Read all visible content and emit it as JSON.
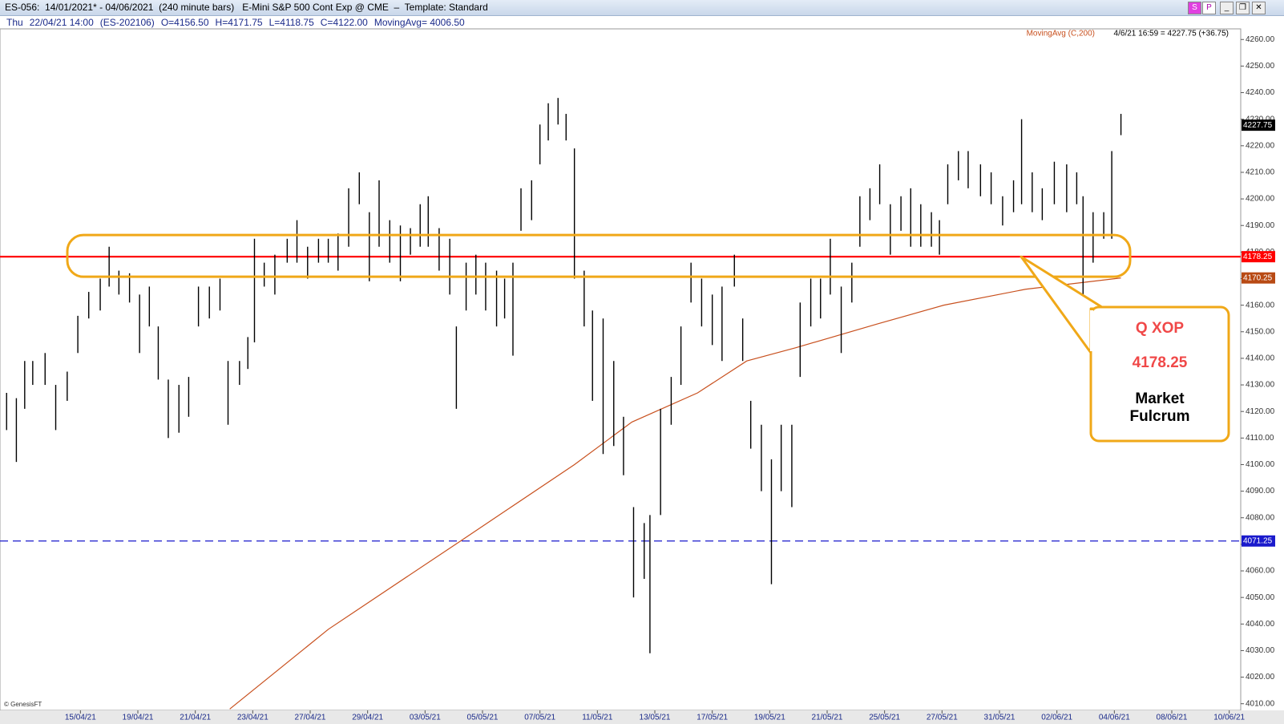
{
  "window": {
    "title": "ES-056:  14/01/2021* - 04/06/2021  (240 minute bars)   E-Mini S&P 500 Cont Exp @ CME  –  Template: Standard",
    "buttons": [
      "S",
      "P"
    ]
  },
  "header": {
    "info": [
      "Thu",
      "22/04/21 14:00",
      "(ES-202106)",
      "O=4156.50",
      "H=4171.75",
      "L=4118.75",
      "C=4122.00",
      "MovingAvg= 4006.50"
    ],
    "last_info": "4/6/21 16:59 = 4227.75 (+36.75)"
  },
  "chart_data": {
    "type": "ohlc",
    "x": [
      -2.57,
      -2.23,
      -1.94,
      -1.66,
      -1.23,
      -0.86,
      -0.46,
      -0.09,
      0.29,
      0.69,
      1.0,
      1.34,
      1.71,
      2.06,
      2.4,
      2.71,
      3.06,
      3.43,
      3.77,
      4.11,
      4.49,
      4.86,
      5.14,
      5.54,
      5.83,
      6.06,
      6.4,
      6.77,
      7.2,
      7.54,
      7.91,
      8.29,
      8.63,
      8.97,
      9.34,
      9.71,
      10.06,
      10.4,
      10.77,
      11.14,
      11.49,
      11.83,
      12.11,
      12.49,
      12.86,
      13.09,
      13.43,
      13.77,
      14.11,
      14.49,
      14.77,
      15.06,
      15.34,
      15.71,
      16.0,
      16.29,
      16.63,
      16.91,
      17.2,
      17.54,
      17.83,
      18.2,
      18.57,
      18.91,
      19.26,
      19.63,
      19.83,
      20.2,
      20.57,
      20.91,
      21.26,
      21.63,
      22.0,
      22.34,
      22.77,
      23.06,
      23.34,
      23.71,
      24.06,
      24.4,
      24.77,
      25.06,
      25.43,
      25.77,
      26.11,
      26.49,
      26.86,
      27.14,
      27.49,
      27.83,
      28.2,
      28.57,
      28.91,
      29.26,
      29.63,
      29.91,
      30.2,
      30.57,
      30.91,
      31.34,
      31.71,
      32.11,
      32.49,
      32.77,
      33.14,
      33.49,
      33.91,
      34.34,
      34.69,
      34.91,
      35.26,
      35.63,
      35.91,
      36.23
    ],
    "high": [
      4127,
      4125,
      4139,
      4139,
      4142,
      4130,
      4135,
      4156,
      4165,
      4170,
      4182,
      4173,
      4172,
      4164,
      4167,
      4152,
      4132,
      4130,
      4133,
      4167,
      4167,
      4170,
      4139,
      4139,
      4148,
      4185,
      4176,
      4179,
      4185,
      4192,
      4182,
      4185,
      4185,
      4187,
      4204,
      4210,
      4195,
      4207,
      4192,
      4190,
      4189,
      4198,
      4201,
      4189,
      4185,
      4152,
      4176,
      4179,
      4176,
      4173,
      4170,
      4176,
      4204,
      4207,
      4228,
      4236,
      4238,
      4232,
      4219,
      4173,
      4158,
      4155,
      4139,
      4118,
      4084,
      4078,
      4081,
      4121,
      4133,
      4152,
      4176,
      4170,
      4164,
      4167,
      4179,
      4155,
      4124,
      4115,
      4102,
      4115,
      4115,
      4161,
      4170,
      4170,
      4185,
      4167,
      4176,
      4201,
      4204,
      4213,
      4198,
      4201,
      4204,
      4198,
      4195,
      4192,
      4213,
      4218,
      4218,
      4213,
      4210,
      4201,
      4207,
      4230,
      4210,
      4204,
      4214,
      4213,
      4210,
      4201,
      4195,
      4195,
      4218,
      4232
    ],
    "low": [
      4113,
      4101,
      4121,
      4130,
      4130,
      4113,
      4124,
      4142,
      4155,
      4158,
      4167,
      4164,
      4161,
      4142,
      4152,
      4132,
      4110,
      4112,
      4118,
      4152,
      4155,
      4158,
      4115,
      4130,
      4136,
      4146,
      4167,
      4164,
      4176,
      4176,
      4170,
      4176,
      4176,
      4173,
      4182,
      4198,
      4169,
      4182,
      4176,
      4169,
      4179,
      4182,
      4182,
      4173,
      4164,
      4121,
      4158,
      4164,
      4158,
      4152,
      4155,
      4141,
      4188,
      4192,
      4213,
      4222,
      4228,
      4222,
      4170,
      4152,
      4124,
      4104,
      4107,
      4096,
      4050,
      4057,
      4029,
      4081,
      4115,
      4130,
      4161,
      4152,
      4145,
      4139,
      4167,
      4139,
      4106,
      4090,
      4055,
      4090,
      4084,
      4133,
      4152,
      4155,
      4164,
      4142,
      4161,
      4182,
      4192,
      4198,
      4179,
      4188,
      4182,
      4182,
      4182,
      4179,
      4198,
      4207,
      4204,
      4201,
      4198,
      4190,
      4195,
      4198,
      4195,
      4192,
      4198,
      4195,
      4198,
      4164,
      4176,
      4185,
      4185,
      4224
    ],
    "bar_color": "#000000",
    "moving_average": {
      "name": "MovingAvg (C,200)",
      "color": "#c8501e",
      "x": [
        5.2,
        8.63,
        13.2,
        17.2,
        19.2,
        21.49,
        23.2,
        24.91,
        27.77,
        30.06,
        32.91,
        36.23
      ],
      "values": [
        4008,
        4038,
        4071,
        4100,
        4116,
        4127,
        4139,
        4144,
        4153,
        4160,
        4166,
        4170.25
      ]
    },
    "levels": [
      {
        "value": 4178.25,
        "color": "#ff0000",
        "dashed": false
      },
      {
        "value": 4071.25,
        "color": "#1a1acc",
        "dashed": true
      }
    ],
    "price_markers": [
      {
        "value": 4227.75,
        "color": "#000000"
      },
      {
        "value": 4178.25,
        "color": "#ff0000"
      },
      {
        "value": 4170.25,
        "color": "#b84a14"
      },
      {
        "value": 4071.25,
        "color": "#1a1acc"
      }
    ],
    "xlim": [
      -2.8,
      40.4
    ],
    "ylim": [
      4007.5,
      4264
    ],
    "xticks": [
      {
        "value": 0,
        "label": "15/04/21"
      },
      {
        "value": 2,
        "label": "19/04/21"
      },
      {
        "value": 4,
        "label": "21/04/21"
      },
      {
        "value": 6,
        "label": "23/04/21"
      },
      {
        "value": 8,
        "label": "27/04/21"
      },
      {
        "value": 10,
        "label": "29/04/21"
      },
      {
        "value": 12,
        "label": "03/05/21"
      },
      {
        "value": 14,
        "label": "05/05/21"
      },
      {
        "value": 16,
        "label": "07/05/21"
      },
      {
        "value": 18,
        "label": "11/05/21"
      },
      {
        "value": 20,
        "label": "13/05/21"
      },
      {
        "value": 22,
        "label": "17/05/21"
      },
      {
        "value": 24,
        "label": "19/05/21"
      },
      {
        "value": 26,
        "label": "21/05/21"
      },
      {
        "value": 28,
        "label": "25/05/21"
      },
      {
        "value": 30,
        "label": "27/05/21"
      },
      {
        "value": 32,
        "label": "31/05/21"
      },
      {
        "value": 34,
        "label": "02/06/21"
      },
      {
        "value": 36,
        "label": "04/06/21"
      },
      {
        "value": 38,
        "label": "08/06/21"
      },
      {
        "value": 40,
        "label": "10/06/21"
      }
    ],
    "yticks": [
      {
        "value": 4010,
        "label": "4010.00"
      },
      {
        "value": 4020,
        "label": "4020.00"
      },
      {
        "value": 4030,
        "label": "4030.00"
      },
      {
        "value": 4040,
        "label": "4040.00"
      },
      {
        "value": 4050,
        "label": "4050.00"
      },
      {
        "value": 4060,
        "label": "4060.00"
      },
      {
        "value": 4070,
        "label": "4070.00"
      },
      {
        "value": 4080,
        "label": "4080.00"
      },
      {
        "value": 4090,
        "label": "4090.00"
      },
      {
        "value": 4100,
        "label": "4100.00"
      },
      {
        "value": 4110,
        "label": "4110.00"
      },
      {
        "value": 4120,
        "label": "4120.00"
      },
      {
        "value": 4130,
        "label": "4130.00"
      },
      {
        "value": 4140,
        "label": "4140.00"
      },
      {
        "value": 4150,
        "label": "4150.00"
      },
      {
        "value": 4160,
        "label": "4160.00"
      },
      {
        "value": 4170,
        "label": "4170.00"
      },
      {
        "value": 4180,
        "label": "4180.00"
      },
      {
        "value": 4190,
        "label": "4190.00"
      },
      {
        "value": 4200,
        "label": "4200.00"
      },
      {
        "value": 4210,
        "label": "4210.00"
      },
      {
        "value": 4220,
        "label": "4220.00"
      },
      {
        "value": 4230,
        "label": "4230.00"
      },
      {
        "value": 4240,
        "label": "4240.00"
      },
      {
        "value": 4250,
        "label": "4250.00"
      },
      {
        "value": 4260,
        "label": "4260.00"
      }
    ],
    "annotation": {
      "lines": [
        "Q XOP",
        "4178.25",
        "Market",
        "Fulcrum"
      ]
    },
    "credit": "© GenesisFT"
  }
}
